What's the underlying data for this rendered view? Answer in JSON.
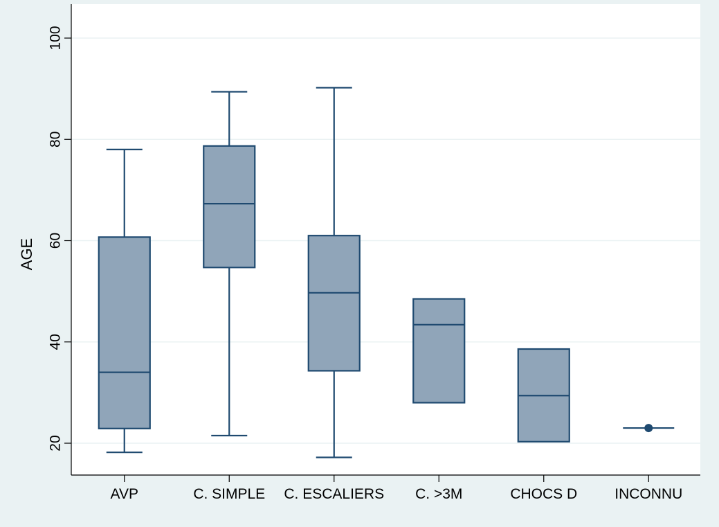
{
  "chart_data": {
    "type": "box",
    "ylabel": "AGE",
    "ylim": [
      13,
      106
    ],
    "yticks": [
      20,
      40,
      60,
      80,
      100
    ],
    "grid": true,
    "categories": [
      "AVP",
      "C. SIMPLE",
      "C. ESCALIERS",
      "C. >3M",
      "CHOCS D",
      "INCONNU"
    ],
    "boxes": [
      {
        "category": "AVP",
        "whisker_low": 18.2,
        "q1": 22.9,
        "median": 34.0,
        "q3": 60.7,
        "whisker_high": 78.0
      },
      {
        "category": "C. SIMPLE",
        "whisker_low": 21.5,
        "q1": 54.7,
        "median": 67.3,
        "q3": 78.7,
        "whisker_high": 89.4
      },
      {
        "category": "C. ESCALIERS",
        "whisker_low": 17.2,
        "q1": 34.3,
        "median": 49.7,
        "q3": 61.0,
        "whisker_high": 90.2
      },
      {
        "category": "C. >3M",
        "whisker_low": 28.0,
        "q1": 28.0,
        "median": 43.4,
        "q3": 48.5,
        "whisker_high": 48.5
      },
      {
        "category": "CHOCS D",
        "whisker_low": 20.3,
        "q1": 20.3,
        "median": 29.4,
        "q3": 38.6,
        "whisker_high": 38.6
      },
      {
        "category": "INCONNU",
        "whisker_low": 23.0,
        "q1": 23.0,
        "median": 23.0,
        "q3": 23.0,
        "whisker_high": 23.0,
        "point": 23.0
      }
    ],
    "colors": {
      "background": "#eaf2f3",
      "plot_background": "#ffffff",
      "box_fill": "#90a5b9",
      "box_stroke": "#1f4a70",
      "grid": "#eaf2f3",
      "axis": "#000000"
    }
  }
}
